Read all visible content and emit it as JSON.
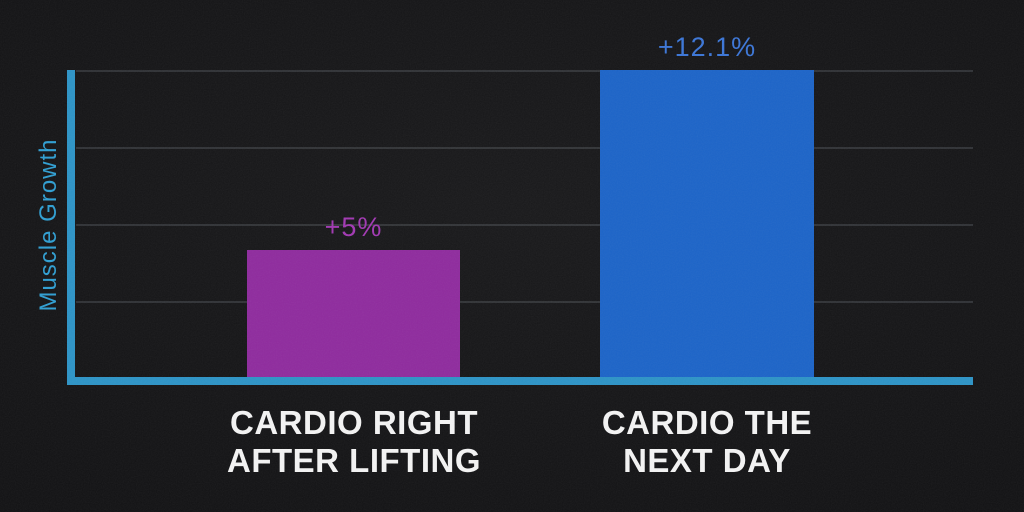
{
  "chart_data": {
    "type": "bar",
    "title": "",
    "categories": [
      "CARDIO RIGHT AFTER LIFTING",
      "CARDIO THE NEXT DAY"
    ],
    "values": [
      5,
      12.1
    ],
    "value_labels": [
      "+5%",
      "+12.1%"
    ],
    "xlabel": "",
    "ylabel": "Muscle Growth",
    "ylim": [
      0,
      12.1
    ],
    "grid": "horizontal-only",
    "legend": "none",
    "bar_colors": [
      "#8F2B9E",
      "#1C64C8"
    ],
    "value_label_colors": [
      "#A238B3",
      "#3B76D8"
    ]
  },
  "bars": [
    {
      "line1": "CARDIO RIGHT",
      "line2": "AFTER LIFTING",
      "value_label": "+5%",
      "value": 5
    },
    {
      "line1": "CARDIO THE",
      "line2": "NEXT DAY",
      "value_label": "+12.1%",
      "value": 12.1
    }
  ],
  "colors": {
    "background": "#131315",
    "axis": "#2D94C7",
    "ylabel_text": "#2F9FD3",
    "gridline": "#45484C",
    "category_text": "#F4F4F4"
  }
}
